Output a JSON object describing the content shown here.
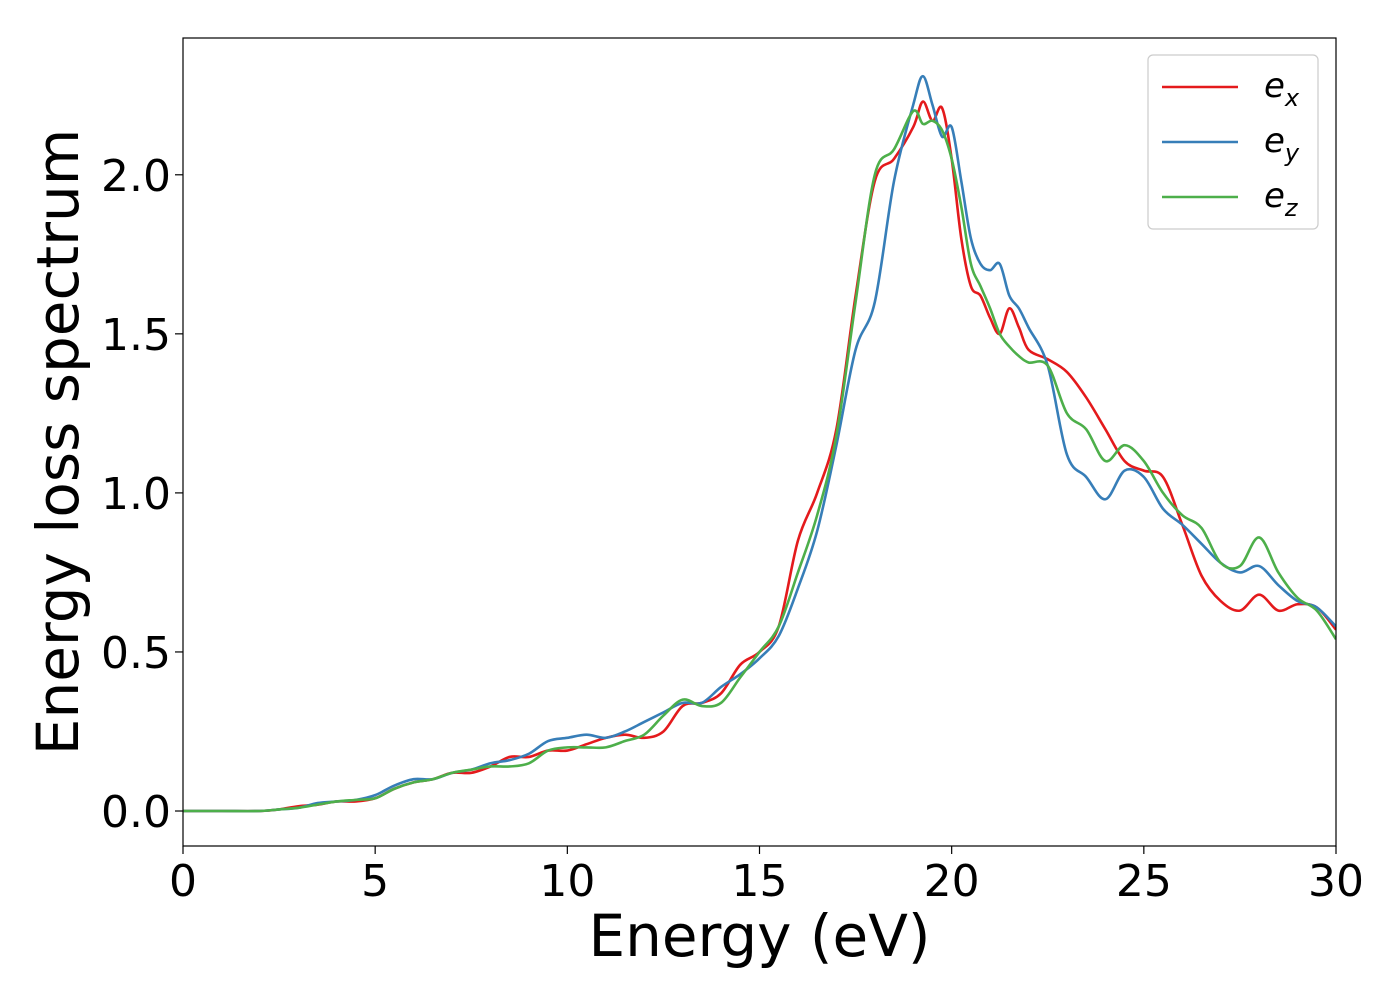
{
  "chart_data": {
    "type": "line",
    "xlabel": "Energy (eV)",
    "ylabel": "Energy loss spectrum",
    "xlim": [
      0,
      30
    ],
    "ylim": [
      -0.11,
      2.43
    ],
    "xticks": [
      0,
      5,
      10,
      15,
      20,
      25,
      30
    ],
    "xtick_labels": [
      "0",
      "5",
      "10",
      "15",
      "20",
      "25",
      "30"
    ],
    "yticks": [
      0.0,
      0.5,
      1.0,
      1.5,
      2.0
    ],
    "ytick_labels": [
      "0.0",
      "0.5",
      "1.0",
      "1.5",
      "2.0"
    ],
    "grid": false,
    "legend_position": "top-right",
    "series": [
      {
        "name": "e_x",
        "legend_base": "e",
        "legend_sub": "x",
        "color": "#e41a1c",
        "x": [
          0,
          1,
          2,
          2.5,
          3,
          3.5,
          4,
          4.5,
          5,
          5.5,
          6,
          6.5,
          7,
          7.5,
          8,
          8.5,
          9,
          9.5,
          10,
          10.5,
          11,
          11.5,
          12,
          12.5,
          13,
          13.5,
          14,
          14.5,
          15,
          15.5,
          16,
          16.5,
          17,
          17.5,
          18,
          18.5,
          19,
          19.25,
          19.5,
          19.75,
          20,
          20.25,
          20.5,
          20.75,
          21,
          21.25,
          21.5,
          21.75,
          22,
          22.5,
          23,
          23.5,
          24,
          24.5,
          25,
          25.5,
          26,
          26.5,
          27,
          27.5,
          28,
          28.5,
          29,
          29.5,
          30
        ],
        "y": [
          0.0,
          0.0,
          0.0,
          0.005,
          0.015,
          0.02,
          0.03,
          0.03,
          0.04,
          0.07,
          0.09,
          0.1,
          0.12,
          0.12,
          0.14,
          0.17,
          0.17,
          0.19,
          0.19,
          0.21,
          0.23,
          0.24,
          0.23,
          0.25,
          0.33,
          0.34,
          0.37,
          0.46,
          0.5,
          0.58,
          0.85,
          1.0,
          1.2,
          1.62,
          1.98,
          2.05,
          2.15,
          2.23,
          2.17,
          2.21,
          2.05,
          1.8,
          1.65,
          1.62,
          1.55,
          1.5,
          1.58,
          1.52,
          1.45,
          1.42,
          1.38,
          1.3,
          1.2,
          1.1,
          1.07,
          1.05,
          0.9,
          0.74,
          0.66,
          0.63,
          0.68,
          0.63,
          0.65,
          0.64,
          0.57
        ]
      },
      {
        "name": "e_y",
        "legend_base": "e",
        "legend_sub": "y",
        "color": "#377eb8",
        "x": [
          0,
          1,
          2,
          2.5,
          3,
          3.5,
          4,
          4.5,
          5,
          5.5,
          6,
          6.5,
          7,
          7.5,
          8,
          8.5,
          9,
          9.5,
          10,
          10.5,
          11,
          11.5,
          12,
          12.5,
          13,
          13.5,
          14,
          14.5,
          15,
          15.5,
          16,
          16.5,
          17,
          17.5,
          18,
          18.5,
          19,
          19.25,
          19.5,
          19.75,
          20,
          20.25,
          20.5,
          20.75,
          21,
          21.25,
          21.5,
          21.75,
          22,
          22.5,
          23,
          23.5,
          24,
          24.5,
          25,
          25.5,
          26,
          26.5,
          27,
          27.5,
          28,
          28.5,
          29,
          29.5,
          30
        ],
        "y": [
          0.0,
          0.0,
          0.0,
          0.005,
          0.01,
          0.025,
          0.03,
          0.035,
          0.05,
          0.08,
          0.1,
          0.1,
          0.12,
          0.13,
          0.15,
          0.16,
          0.18,
          0.22,
          0.23,
          0.24,
          0.23,
          0.25,
          0.28,
          0.31,
          0.34,
          0.34,
          0.39,
          0.43,
          0.48,
          0.55,
          0.7,
          0.88,
          1.15,
          1.45,
          1.6,
          1.98,
          2.22,
          2.31,
          2.22,
          2.12,
          2.15,
          1.98,
          1.8,
          1.72,
          1.7,
          1.72,
          1.62,
          1.58,
          1.52,
          1.4,
          1.12,
          1.05,
          0.98,
          1.07,
          1.05,
          0.95,
          0.9,
          0.84,
          0.78,
          0.75,
          0.77,
          0.71,
          0.66,
          0.64,
          0.58
        ]
      },
      {
        "name": "e_z",
        "legend_base": "e",
        "legend_sub": "z",
        "color": "#4daf4a",
        "x": [
          0,
          1,
          2,
          2.5,
          3,
          3.5,
          4,
          4.5,
          5,
          5.5,
          6,
          6.5,
          7,
          7.5,
          8,
          8.5,
          9,
          9.5,
          10,
          10.5,
          11,
          11.5,
          12,
          12.5,
          13,
          13.5,
          14,
          14.5,
          15,
          15.5,
          16,
          16.5,
          17,
          17.5,
          18,
          18.5,
          19,
          19.25,
          19.5,
          19.75,
          20,
          20.25,
          20.5,
          20.75,
          21,
          21.25,
          21.5,
          21.75,
          22,
          22.5,
          23,
          23.5,
          24,
          24.5,
          25,
          25.5,
          26,
          26.5,
          27,
          27.5,
          28,
          28.5,
          29,
          29.5,
          30
        ],
        "y": [
          0.0,
          0.0,
          0.0,
          0.005,
          0.01,
          0.02,
          0.03,
          0.035,
          0.04,
          0.07,
          0.09,
          0.1,
          0.12,
          0.13,
          0.14,
          0.14,
          0.15,
          0.19,
          0.2,
          0.2,
          0.2,
          0.22,
          0.24,
          0.3,
          0.35,
          0.33,
          0.34,
          0.42,
          0.5,
          0.58,
          0.75,
          0.93,
          1.18,
          1.6,
          2.0,
          2.08,
          2.2,
          2.16,
          2.17,
          2.14,
          2.05,
          1.9,
          1.72,
          1.65,
          1.58,
          1.5,
          1.46,
          1.43,
          1.41,
          1.4,
          1.25,
          1.2,
          1.1,
          1.15,
          1.1,
          1.0,
          0.93,
          0.89,
          0.78,
          0.77,
          0.86,
          0.75,
          0.67,
          0.63,
          0.54
        ]
      }
    ]
  }
}
